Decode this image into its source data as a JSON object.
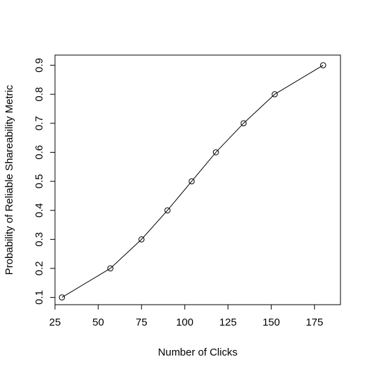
{
  "chart_data": {
    "type": "line",
    "title": "",
    "xlabel": "Number of Clicks",
    "ylabel": "Probability of Reliable Shareability Metric",
    "xlim": [
      25,
      190
    ],
    "ylim": [
      0.075,
      0.935
    ],
    "x_ticks": [
      25,
      50,
      75,
      100,
      125,
      150,
      175
    ],
    "x_tick_labels": [
      "25",
      "50",
      "75",
      "100",
      "125",
      "150",
      "175"
    ],
    "y_ticks": [
      0.1,
      0.2,
      0.3,
      0.4,
      0.5,
      0.6,
      0.7,
      0.8,
      0.9
    ],
    "y_tick_labels": [
      "0.1",
      "0.2",
      "0.3",
      "0.4",
      "0.5",
      "0.6",
      "0.7",
      "0.8",
      "0.9"
    ],
    "grid": false,
    "marker": "open-circle",
    "series": [
      {
        "x": [
          29,
          57,
          75,
          90,
          104,
          118,
          134,
          152,
          180
        ],
        "y": [
          0.1,
          0.2,
          0.3,
          0.4,
          0.5,
          0.6,
          0.7,
          0.8,
          0.9
        ]
      }
    ]
  }
}
